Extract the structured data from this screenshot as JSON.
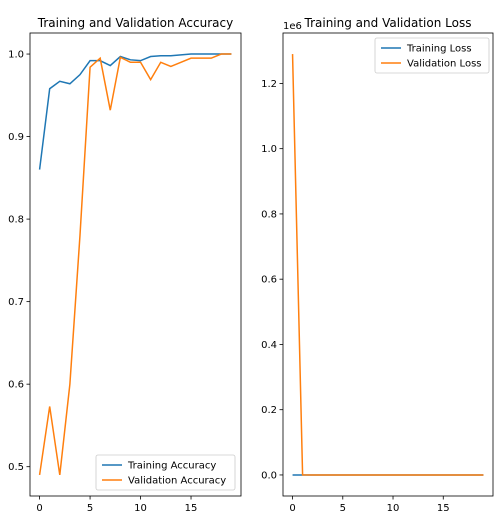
{
  "chart_data": [
    {
      "type": "line",
      "title": "Training and Validation Accuracy",
      "x": [
        0,
        1,
        2,
        3,
        4,
        5,
        6,
        7,
        8,
        9,
        10,
        11,
        12,
        13,
        14,
        15,
        16,
        17,
        18,
        19
      ],
      "series": [
        {
          "name": "Training Accuracy",
          "color": "#1f77b4",
          "values": [
            0.86,
            0.958,
            0.967,
            0.964,
            0.975,
            0.992,
            0.992,
            0.986,
            0.997,
            0.993,
            0.992,
            0.997,
            0.998,
            0.998,
            0.999,
            1.0,
            1.0,
            1.0,
            1.0,
            1.0
          ]
        },
        {
          "name": "Validation Accuracy",
          "color": "#ff7f0e",
          "values": [
            0.49,
            0.573,
            0.49,
            0.6,
            0.78,
            0.984,
            0.995,
            0.932,
            0.996,
            0.99,
            0.99,
            0.969,
            0.99,
            0.985,
            0.99,
            0.995,
            0.995,
            0.995,
            1.0,
            1.0
          ]
        }
      ],
      "xlim": [
        -0.95,
        19.95
      ],
      "ylim": [
        0.4645,
        1.0255
      ],
      "xticks": [
        0,
        5,
        10,
        15
      ],
      "yticks": [
        0.5,
        0.6,
        0.7,
        0.8,
        0.9,
        1.0
      ],
      "legend": "lower right"
    },
    {
      "type": "line",
      "title": "Training and Validation Loss",
      "offset_label": "1e6",
      "x": [
        0,
        1,
        2,
        3,
        4,
        5,
        6,
        7,
        8,
        9,
        10,
        11,
        12,
        13,
        14,
        15,
        16,
        17,
        18,
        19
      ],
      "series": [
        {
          "name": "Training Loss",
          "color": "#1f77b4",
          "values": [
            0,
            0,
            0,
            0,
            0,
            0,
            0,
            0,
            0,
            0,
            0,
            0,
            0,
            0,
            0,
            0,
            0,
            0,
            0,
            0
          ]
        },
        {
          "name": "Validation Loss",
          "color": "#ff7f0e",
          "values": [
            1.29,
            0.0001,
            0,
            0,
            0,
            0,
            0,
            0,
            0,
            0,
            0,
            0,
            0,
            0,
            0,
            0,
            0,
            0,
            0,
            0
          ]
        }
      ],
      "xlim": [
        -0.95,
        19.95
      ],
      "ylim": [
        -0.0645,
        1.3545
      ],
      "xticks": [
        0,
        5,
        10,
        15
      ],
      "yticks": [
        0.0,
        0.2,
        0.4,
        0.6,
        0.8,
        1.0,
        1.2
      ],
      "legend": "upper right"
    }
  ]
}
